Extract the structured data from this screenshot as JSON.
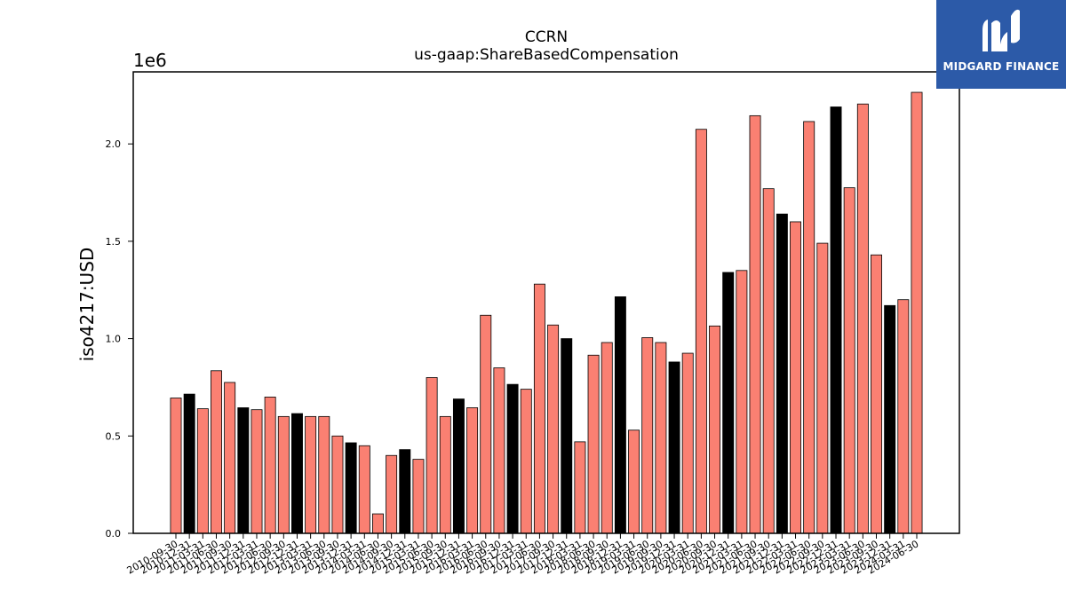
{
  "chart_data": {
    "type": "bar",
    "title": "CCRN",
    "subtitle": "us-gaap:ShareBasedCompensation",
    "ylabel": "iso4217:USD",
    "y_offset_label": "1e6",
    "ylim": [
      0,
      2370000
    ],
    "yticks": [
      0.0,
      0.5,
      1.0,
      1.5,
      2.0
    ],
    "ytick_labels": [
      "0.0",
      "0.5",
      "1.0",
      "1.5",
      "2.0"
    ],
    "colors": {
      "primary": "#fa8072",
      "highlight": "#000000",
      "edge": "#000000"
    },
    "categories": [
      "2010-09-30",
      "2010-12-31",
      "2011-03-31",
      "2011-06-30",
      "2011-09-30",
      "2011-12-31",
      "2012-03-31",
      "2012-06-30",
      "2012-09-30",
      "2012-12-31",
      "2013-03-31",
      "2013-06-30",
      "2013-09-30",
      "2013-12-31",
      "2014-03-31",
      "2014-06-30",
      "2014-09-30",
      "2014-12-31",
      "2015-03-31",
      "2015-06-30",
      "2015-09-30",
      "2015-12-31",
      "2016-03-31",
      "2016-06-30",
      "2016-09-30",
      "2016-12-31",
      "2017-03-31",
      "2017-06-30",
      "2017-09-30",
      "2017-12-31",
      "2018-03-31",
      "2018-06-30",
      "2018-09-30",
      "2018-12-31",
      "2019-03-31",
      "2019-06-30",
      "2019-09-30",
      "2019-12-31",
      "2020-03-31",
      "2020-06-30",
      "2020-09-30",
      "2020-12-31",
      "2021-03-31",
      "2021-06-30",
      "2021-09-30",
      "2021-12-31",
      "2022-03-31",
      "2022-06-30",
      "2022-09-30",
      "2022-12-31",
      "2023-03-31",
      "2023-06-30",
      "2023-09-30",
      "2023-12-31",
      "2024-03-31",
      "2024-06-30"
    ],
    "values": [
      695000,
      715000,
      640000,
      835000,
      775000,
      645000,
      635000,
      700000,
      600000,
      615000,
      600000,
      600000,
      500000,
      465000,
      450000,
      100000,
      400000,
      430000,
      380000,
      800000,
      600000,
      690000,
      645000,
      1120000,
      850000,
      765000,
      740000,
      1280000,
      1070000,
      1000000,
      470000,
      915000,
      980000,
      1215000,
      530000,
      1005000,
      980000,
      880000,
      925000,
      2075000,
      1065000,
      1340000,
      1350000,
      2145000,
      1770000,
      1640000,
      1600000,
      2115000,
      1490000,
      2190000,
      1775000,
      2205000,
      1430000,
      1170000,
      1200000,
      2265000
    ],
    "highlight": [
      false,
      true,
      false,
      false,
      false,
      true,
      false,
      false,
      false,
      true,
      false,
      false,
      false,
      true,
      false,
      false,
      false,
      true,
      false,
      false,
      false,
      true,
      false,
      false,
      false,
      true,
      false,
      false,
      false,
      true,
      false,
      false,
      false,
      true,
      false,
      false,
      false,
      true,
      false,
      false,
      false,
      true,
      false,
      false,
      false,
      true,
      false,
      false,
      false,
      true,
      false,
      false,
      false,
      true,
      false,
      false
    ],
    "grid": false,
    "legend": "none"
  },
  "logo": {
    "text": "MIDGARD FINANCE",
    "icon": "midgard-logo-icon"
  }
}
